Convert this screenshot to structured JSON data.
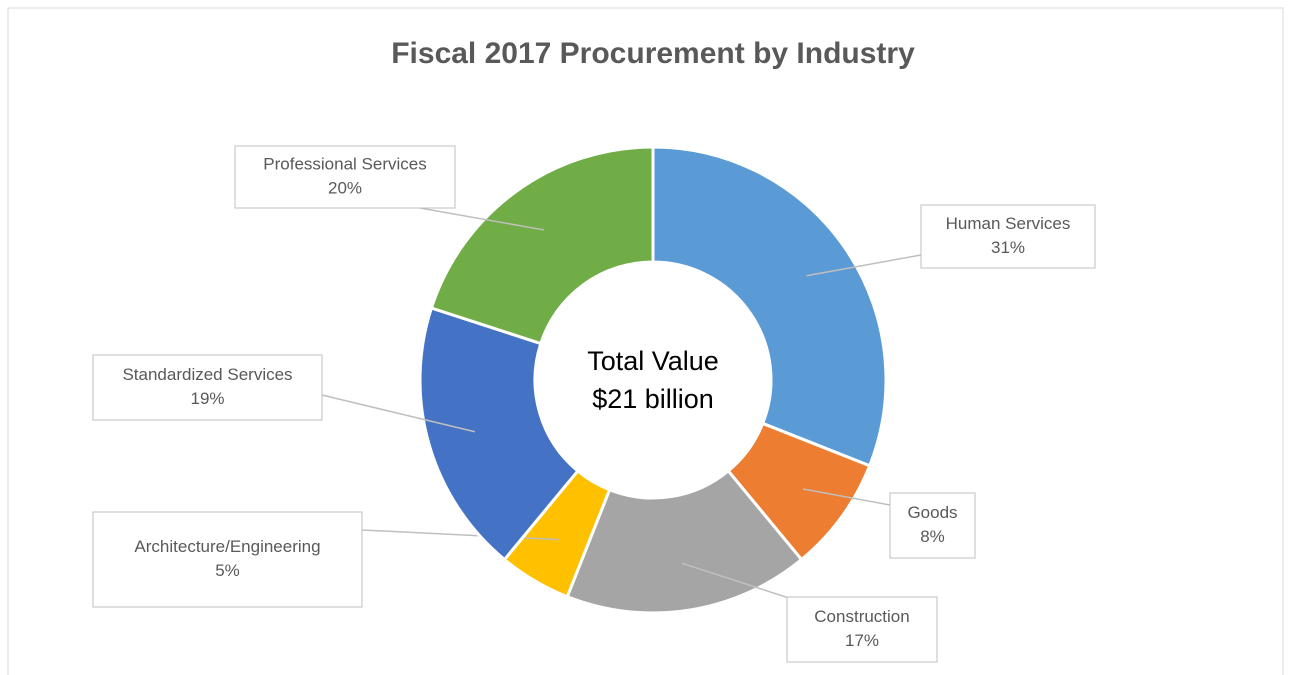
{
  "chart_data": {
    "type": "donut",
    "title": "Fiscal 2017 Procurement by Industry",
    "center_text": [
      "Total Value",
      "$21 billion"
    ],
    "categories": [
      "Human Services",
      "Goods",
      "Construction",
      "Architecture/Engineering",
      "Standardized Services",
      "Professional Services"
    ],
    "values": [
      31,
      8,
      17,
      5,
      19,
      20
    ],
    "value_labels": [
      "31%",
      "8%",
      "17%",
      "5%",
      "19%",
      "20%"
    ],
    "colors": [
      "#5B9BD5",
      "#ED7D31",
      "#A5A5A5",
      "#FFC000",
      "#4472C4",
      "#70AD47"
    ]
  }
}
